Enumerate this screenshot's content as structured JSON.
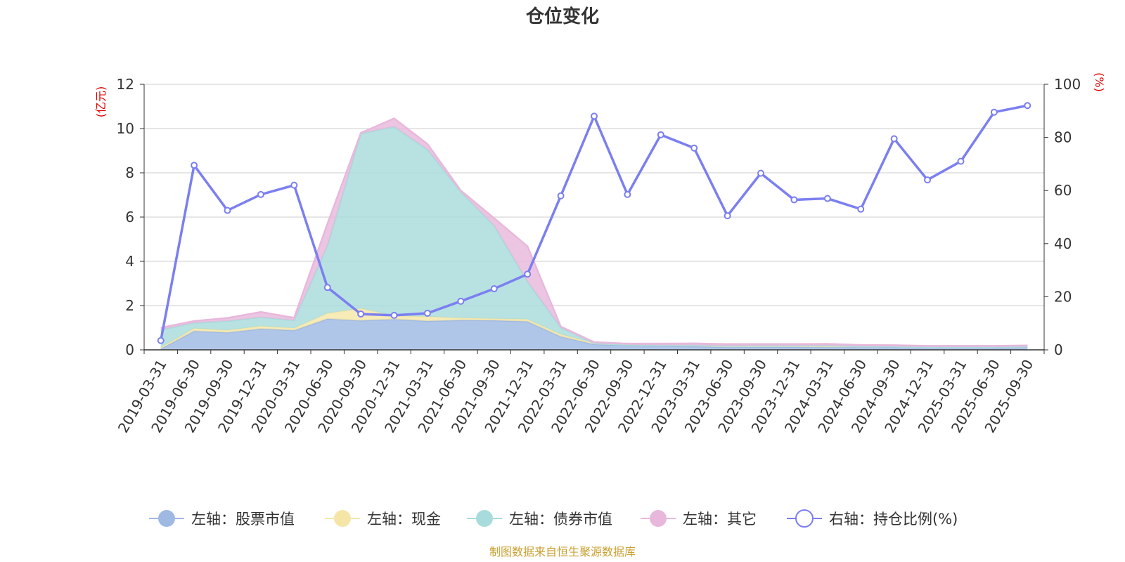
{
  "chart_data": {
    "type": "area",
    "title": "仓位变化",
    "left_unit": "(亿元)",
    "right_unit": "(%)",
    "left_ylim": [
      0,
      12
    ],
    "left_ticks": [
      "0",
      "2",
      "4",
      "6",
      "8",
      "10",
      "12"
    ],
    "right_ylim": [
      0,
      100
    ],
    "right_ticks": [
      "0",
      "20",
      "40",
      "60",
      "80",
      "100"
    ],
    "categories": [
      "2019-03-31",
      "2019-06-30",
      "2019-09-30",
      "2019-12-31",
      "2020-03-31",
      "2020-06-30",
      "2020-09-30",
      "2020-12-31",
      "2021-03-31",
      "2021-06-30",
      "2021-09-30",
      "2021-12-31",
      "2022-03-31",
      "2022-06-30",
      "2022-09-30",
      "2022-12-31",
      "2023-03-31",
      "2023-06-30",
      "2023-09-30",
      "2023-12-31",
      "2024-03-31",
      "2024-06-30",
      "2024-09-30",
      "2024-12-31",
      "2025-03-31",
      "2025-06-30",
      "2025-09-30"
    ],
    "series": [
      {
        "name": "左轴：股票市值",
        "axis": "left",
        "kind": "stacked-area",
        "color": "#9fb9e3",
        "values": [
          0.05,
          0.85,
          0.78,
          0.95,
          0.88,
          1.4,
          1.32,
          1.38,
          1.3,
          1.34,
          1.33,
          1.28,
          0.6,
          0.25,
          0.2,
          0.18,
          0.16,
          0.12,
          0.13,
          0.13,
          0.12,
          0.12,
          0.12,
          0.1,
          0.1,
          0.1,
          0.12
        ]
      },
      {
        "name": "左轴：现金",
        "axis": "left",
        "kind": "stacked-area",
        "color": "#f5e6a8",
        "values": [
          0.05,
          0.12,
          0.1,
          0.12,
          0.1,
          0.25,
          0.55,
          0.15,
          0.2,
          0.1,
          0.08,
          0.1,
          0.1,
          0.05,
          0.03,
          0.03,
          0.05,
          0.06,
          0.06,
          0.06,
          0.08,
          0.04,
          0.03,
          0.03,
          0.03,
          0.03,
          0.03
        ]
      },
      {
        "name": "左轴：债券市值",
        "axis": "left",
        "kind": "stacked-area",
        "color": "#a8dcdc",
        "values": [
          0.8,
          0.25,
          0.42,
          0.4,
          0.35,
          3.05,
          7.9,
          8.55,
          7.55,
          5.7,
          4.2,
          1.7,
          0.3,
          0.0,
          0.0,
          0.0,
          0.0,
          0.0,
          0.0,
          0.0,
          0.0,
          0.0,
          0.0,
          0.0,
          0.0,
          0.0,
          0.0
        ]
      },
      {
        "name": "左轴：其它",
        "axis": "left",
        "kind": "stacked-area",
        "color": "#e8b8dc",
        "values": [
          0.1,
          0.08,
          0.14,
          0.24,
          0.12,
          1.0,
          0.03,
          0.38,
          0.25,
          0.06,
          0.34,
          1.6,
          0.05,
          0.05,
          0.05,
          0.07,
          0.08,
          0.08,
          0.07,
          0.07,
          0.07,
          0.06,
          0.06,
          0.05,
          0.05,
          0.05,
          0.05
        ]
      },
      {
        "name": "右轴：持仓比例(%)",
        "axis": "right",
        "kind": "line",
        "color": "#7b7ff0",
        "values": [
          3.5,
          69.5,
          52.5,
          58.5,
          62,
          23.5,
          13.5,
          13,
          13.8,
          18.3,
          23,
          28.5,
          58,
          88,
          58.5,
          81,
          76,
          50.5,
          66.5,
          56.5,
          57,
          53,
          79.5,
          64,
          71,
          89.5,
          92
        ]
      }
    ],
    "source": "制图数据来自恒生聚源数据库"
  }
}
